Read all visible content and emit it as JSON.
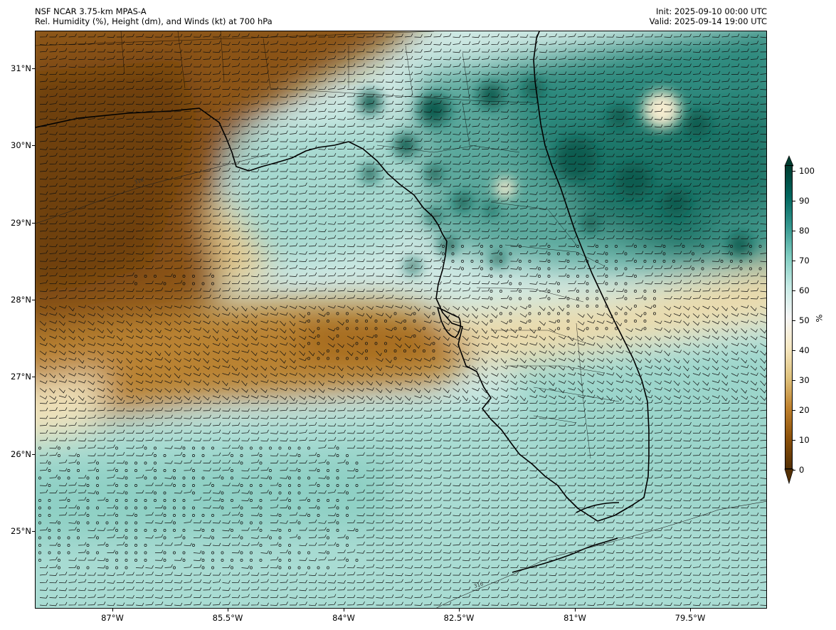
{
  "header": {
    "model": "NSF NCAR 3.75-km MPAS-A",
    "fields": "Rel. Humidity (%), Height (dm), and Winds (kt) at 700 hPa",
    "init": "Init: 2025-09-10 00:00 UTC",
    "valid": "Valid: 2025-09-14 19:00 UTC"
  },
  "map": {
    "lat_labels": [
      "31°N",
      "30°N",
      "29°N",
      "28°N",
      "27°N",
      "26°N",
      "25°N"
    ],
    "lon_labels": [
      "87°W",
      "85.5°W",
      "84°W",
      "82.5°W",
      "81°W",
      "79.5°W"
    ],
    "contour_labels": [
      "316",
      "316"
    ]
  },
  "colorbar": {
    "unit": "%",
    "ticks": [
      "100",
      "90",
      "80",
      "70",
      "60",
      "50",
      "40",
      "30",
      "20",
      "10",
      "0"
    ],
    "colors": [
      "#543005",
      "#8c510a",
      "#bf812d",
      "#dfc27d",
      "#f6e8c3",
      "#f5f5f5",
      "#c7eae5",
      "#80cdc1",
      "#35978f",
      "#01665e",
      "#003c30"
    ]
  }
}
